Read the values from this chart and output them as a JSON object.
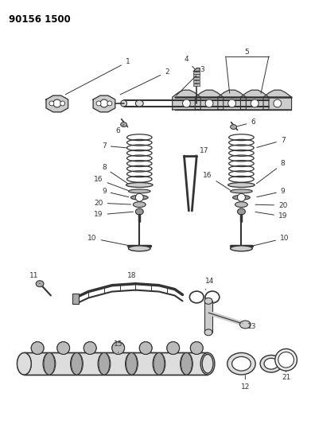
{
  "title": "90156 1500",
  "bg_color": "#ffffff",
  "line_color": "#333333",
  "figsize": [
    3.91,
    5.33
  ],
  "dpi": 100
}
